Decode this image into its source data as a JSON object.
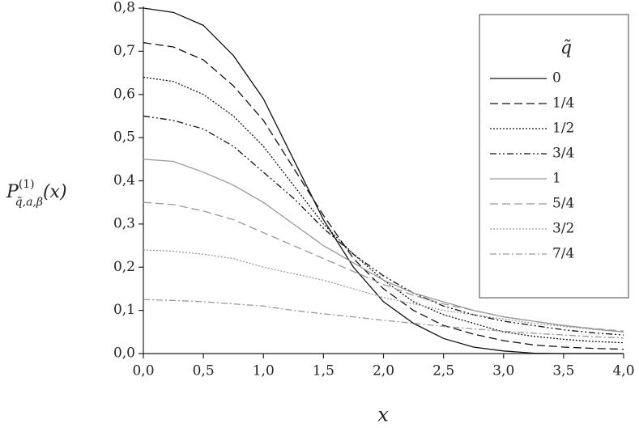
{
  "chart_data": {
    "type": "line",
    "y_label": {
      "base": "P",
      "sup": "(1)",
      "sub": "q̃,a,β",
      "arg": "(x)"
    },
    "x_label": "x",
    "legend_title": "q̃",
    "x": [
      0,
      0.25,
      0.5,
      0.75,
      1,
      1.25,
      1.5,
      1.75,
      2,
      2.25,
      2.5,
      2.75,
      3,
      3.25,
      3.5,
      3.75,
      4
    ],
    "series": [
      {
        "name": "0",
        "color": "#111111",
        "dash": "none",
        "values": [
          0.8,
          0.79,
          0.76,
          0.69,
          0.59,
          0.45,
          0.31,
          0.2,
          0.12,
          0.07,
          0.035,
          0.015,
          0.006,
          0.001,
          0,
          0,
          0
        ]
      },
      {
        "name": "1/4",
        "color": "#111111",
        "dash": "10 5",
        "values": [
          0.72,
          0.71,
          0.68,
          0.62,
          0.54,
          0.43,
          0.32,
          0.22,
          0.15,
          0.1,
          0.065,
          0.045,
          0.03,
          0.02,
          0.015,
          0.012,
          0.01
        ]
      },
      {
        "name": "1/2",
        "color": "#111111",
        "dash": "2 2",
        "values": [
          0.64,
          0.63,
          0.6,
          0.55,
          0.48,
          0.39,
          0.3,
          0.23,
          0.17,
          0.12,
          0.09,
          0.07,
          0.05,
          0.04,
          0.033,
          0.028,
          0.025
        ]
      },
      {
        "name": "3/4",
        "color": "#111111",
        "dash": "8 3 2 3 2 3",
        "values": [
          0.55,
          0.54,
          0.52,
          0.48,
          0.42,
          0.36,
          0.29,
          0.23,
          0.18,
          0.14,
          0.11,
          0.09,
          0.075,
          0.065,
          0.055,
          0.048,
          0.043
        ]
      },
      {
        "name": "1",
        "color": "#999999",
        "dash": "none",
        "values": [
          0.45,
          0.445,
          0.42,
          0.39,
          0.35,
          0.3,
          0.25,
          0.21,
          0.17,
          0.14,
          0.12,
          0.1,
          0.085,
          0.075,
          0.065,
          0.057,
          0.05
        ]
      },
      {
        "name": "5/4",
        "color": "#999999",
        "dash": "10 5",
        "values": [
          0.35,
          0.345,
          0.33,
          0.31,
          0.28,
          0.25,
          0.22,
          0.19,
          0.16,
          0.135,
          0.115,
          0.1,
          0.085,
          0.075,
          0.065,
          0.058,
          0.052
        ]
      },
      {
        "name": "3/2",
        "color": "#999999",
        "dash": "2 2",
        "values": [
          0.24,
          0.237,
          0.23,
          0.22,
          0.2,
          0.185,
          0.17,
          0.15,
          0.13,
          0.115,
          0.1,
          0.09,
          0.08,
          0.07,
          0.063,
          0.056,
          0.05
        ]
      },
      {
        "name": "7/4",
        "color": "#999999",
        "dash": "8 3 2 3",
        "values": [
          0.125,
          0.123,
          0.12,
          0.115,
          0.11,
          0.1,
          0.092,
          0.085,
          0.077,
          0.07,
          0.063,
          0.057,
          0.052,
          0.047,
          0.043,
          0.039,
          0.036
        ]
      }
    ],
    "xlim": [
      0,
      4
    ],
    "ylim": [
      0,
      0.8
    ],
    "xticks": [
      {
        "value": 0,
        "label": "0,0"
      },
      {
        "value": 0.5,
        "label": "0,5"
      },
      {
        "value": 1,
        "label": "1,0"
      },
      {
        "value": 1.5,
        "label": "1,5"
      },
      {
        "value": 2,
        "label": "2,0"
      },
      {
        "value": 2.5,
        "label": "2,5"
      },
      {
        "value": 3,
        "label": "3,0"
      },
      {
        "value": 3.5,
        "label": "3,5"
      },
      {
        "value": 4,
        "label": "4,0"
      }
    ],
    "yticks": [
      {
        "value": 0,
        "label": "0,0"
      },
      {
        "value": 0.1,
        "label": "0,1"
      },
      {
        "value": 0.2,
        "label": "0,2"
      },
      {
        "value": 0.3,
        "label": "0,3"
      },
      {
        "value": 0.4,
        "label": "0,4"
      },
      {
        "value": 0.5,
        "label": "0,5"
      },
      {
        "value": 0.6,
        "label": "0,6"
      },
      {
        "value": 0.7,
        "label": "0,7"
      },
      {
        "value": 0.8,
        "label": "0,8"
      }
    ],
    "grid": false,
    "legend_position": "upper right"
  }
}
